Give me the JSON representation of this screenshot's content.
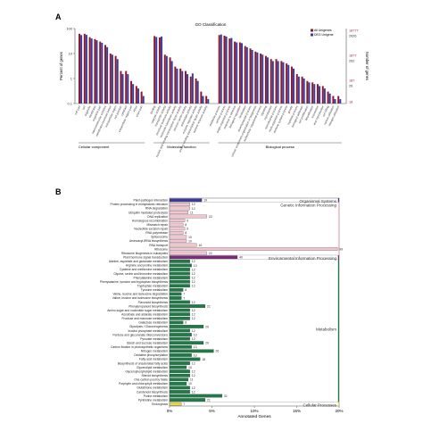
{
  "panel_a_letter": "A",
  "panel_b_letter": "B",
  "chart_data": [
    {
      "type": "bar",
      "title": "GO Classification",
      "ylabel": "Percent of genes",
      "y2label": "Number of genes",
      "ylim": [
        0.1,
        100
      ],
      "yscale": "log",
      "yticks": [
        "100",
        "10",
        "1",
        "0.1"
      ],
      "y2ticks": [
        "18777",
        "2626",
        "1877",
        "262",
        "187",
        "26",
        "18"
      ],
      "legend": {
        "position": "top-right",
        "entries": [
          "All Unigenes",
          "DEG Unigene"
        ]
      },
      "groups": [
        {
          "name": "Cellular component",
          "count": 13
        },
        {
          "name": "Molecular function",
          "count": 11
        },
        {
          "name": "Biological process",
          "count": 24
        }
      ],
      "categories": [
        "cell part",
        "cell",
        "organelle",
        "membrane",
        "organelle part",
        "macromolecular complex",
        "membrane-enclosed lumen",
        "extracellular region",
        "cell junction",
        "symplast",
        "extracellular region part",
        "virion",
        "virion part",
        "binding",
        "catalytic activity",
        "transporter activity",
        "structural molecule activity",
        "molecular transducer activity",
        "nucleic acid binding transcription factor activity",
        "electron carrier activity",
        "antioxidant activity",
        "enzyme regulator activity",
        "protein binding transcription factor activity",
        "nutrient reservoir activity",
        "metabolic process",
        "cellular process",
        "single-organism process",
        "response to stimulus",
        "biological regulation",
        "localization",
        "developmental process",
        "cellular component organization or biogenesis",
        "multicellular organismal process",
        "signaling",
        "reproduction",
        "reproductive process",
        "multi-organism process",
        "immune system process",
        "growth",
        "rhythmic process",
        "biological adhesion",
        "cell proliferation",
        "detoxification",
        "locomotion",
        "viral reproduction",
        "cell killing",
        "carbon utilization",
        "nitrogen utilization"
      ],
      "series": [
        {
          "name": "All Unigenes",
          "color": "#8b1a2b",
          "values": [
            62,
            62,
            45,
            38,
            30,
            22,
            10,
            8,
            2,
            2,
            0.8,
            0.5,
            0.3,
            50,
            44,
            9,
            7,
            3,
            2.5,
            2,
            1.2,
            1,
            0.3,
            0.2,
            55,
            52,
            40,
            30,
            28,
            20,
            16,
            12,
            10,
            8,
            6,
            6,
            5,
            4,
            3,
            1.5,
            1.2,
            0.8,
            0.7,
            0.6,
            0.5,
            0.3,
            0.2,
            0.2
          ]
        },
        {
          "name": "DEG Unigene",
          "color": "#3b3b9e",
          "values": [
            55,
            56,
            40,
            34,
            27,
            18,
            9,
            6,
            1.5,
            1.5,
            0.6,
            0.4,
            0.2,
            46,
            48,
            8,
            5,
            2.5,
            2,
            1.5,
            1.6,
            0.8,
            0.2,
            0.15,
            58,
            48,
            42,
            28,
            26,
            18,
            14,
            11,
            9,
            7,
            5,
            5,
            4.5,
            3.5,
            2.5,
            1.2,
            1,
            0.7,
            0.6,
            0.5,
            0.4,
            0.25,
            0.15,
            0.15
          ]
        }
      ]
    },
    {
      "type": "bar",
      "orientation": "horizontal",
      "xlabel": "Annotated Genes",
      "xlim": [
        0,
        20
      ],
      "xticks": [
        "0%",
        "5%",
        "10%",
        "15%",
        "20%"
      ],
      "categories": [
        {
          "group": "Organismal Systems",
          "color": "#3b3b9e",
          "items": [
            [
              "Plant-pathogen interaction",
              19
            ]
          ]
        },
        {
          "group": "Genetic Information Processing",
          "color": "#f2c6cf",
          "items": [
            [
              "Protein processing in endoplasmic reticulum",
              12
            ],
            [
              "RNA degradation",
              12
            ],
            [
              "Ubiquitin mediated proteolysis",
              11
            ],
            [
              "DNA replication",
              22
            ],
            [
              "Homologous recombination",
              9
            ],
            [
              "Mismatch repair",
              8
            ],
            [
              "Nucleotide excision repair",
              9
            ],
            [
              "RNA polymerase",
              8
            ],
            [
              "Spliceosome",
              10
            ],
            [
              "Aminoacyl-tRNA biosynthesis",
              10
            ],
            [
              "RNA transport",
              16
            ],
            [
              "Ribosome",
              99
            ],
            [
              "Ribosome biogenesis in eukaryotes",
              22
            ]
          ]
        },
        {
          "group": "Environmental Information Processing",
          "color": "#7b2a7e",
          "items": [
            [
              "Plant hormone signal transduction",
              40
            ]
          ]
        },
        {
          "group": "Metabolism",
          "color": "#1e7a46",
          "items": [
            [
              "Alanine, aspartate and glutamate metabolism",
              12
            ],
            [
              "Arginine and proline metabolism",
              13
            ],
            [
              "Cysteine and methionine metabolism",
              12
            ],
            [
              "Glycine, serine and threonine metabolism",
              12
            ],
            [
              "Phenylalanine metabolism",
              12
            ],
            [
              "Phenylalanine, tyrosine and tryptophan biosynthesis",
              12
            ],
            [
              "Tryptophan metabolism",
              12
            ],
            [
              "Tyrosine metabolism",
              8
            ],
            [
              "Valine, leucine and isoleucine degradation",
              7
            ],
            [
              "Valine, leucine and isoleucine biosynthesis",
              7
            ],
            [
              "Flavonoid biosynthesis",
              12
            ],
            [
              "Phenylpropanoid biosynthesis",
              21
            ],
            [
              "Amino sugar and nucleotide sugar metabolism",
              12
            ],
            [
              "Ascorbate and aldarate metabolism",
              12
            ],
            [
              "Fructose and mannose metabolism",
              12
            ],
            [
              "Galactose metabolism",
              8
            ],
            [
              "Glycolysis / Gluconeogenesis",
              20
            ],
            [
              "Inositol phosphate metabolism",
              12
            ],
            [
              "Pentose and glucuronate interconversions",
              13
            ],
            [
              "Pyruvate metabolism",
              12
            ],
            [
              "Starch and sucrose metabolism",
              20
            ],
            [
              "Carbon fixation in photosynthetic organisms",
              13
            ],
            [
              "Nitrogen metabolism",
              26
            ],
            [
              "Oxidative phosphorylation",
              13
            ],
            [
              "Fatty acid metabolism",
              18
            ],
            [
              "Biosynthesis of unsaturated fatty acids",
              12
            ],
            [
              "Glycerolipid metabolism",
              10
            ],
            [
              "Glycerophospholipid metabolism",
              12
            ],
            [
              "Steroid biosynthesis",
              12
            ],
            [
              "One carbon pool by folate",
              11
            ],
            [
              "Porphyrin and chlorophyll metabolism",
              10
            ],
            [
              "Glutathione metabolism",
              12
            ],
            [
              "Carotenoid biosynthesis",
              12
            ],
            [
              "Purine metabolism",
              31
            ],
            [
              "Pyrimidine metabolism",
              21
            ]
          ]
        },
        {
          "group": "Cellular Processes",
          "color": "#e6d84a",
          "items": [
            [
              "Endocytosis",
              7
            ]
          ]
        }
      ]
    }
  ]
}
